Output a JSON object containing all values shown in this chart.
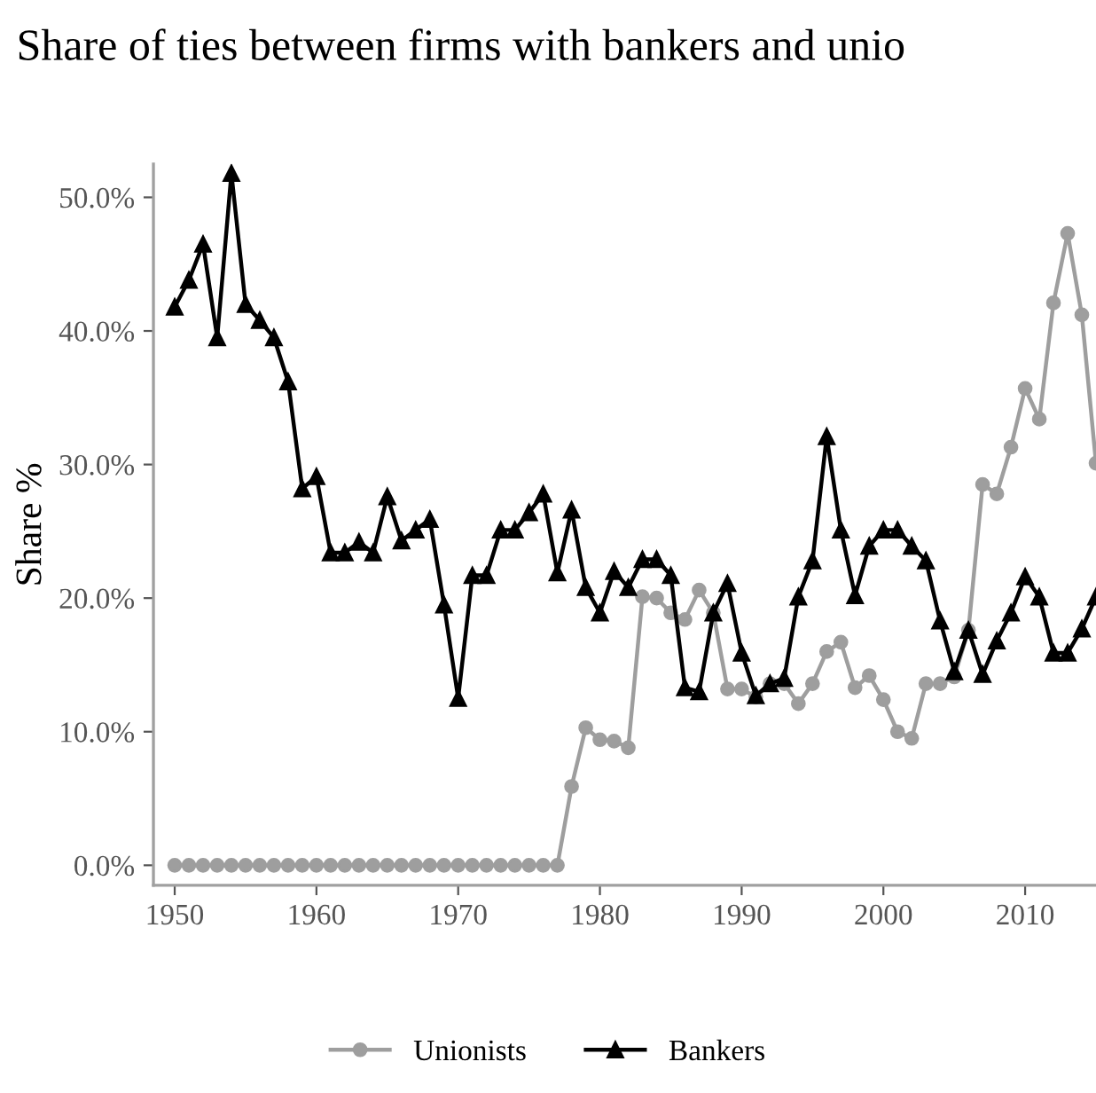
{
  "chart_data": {
    "type": "line",
    "title": "Share of ties between firms with bankers and unio",
    "ylabel": "Share %",
    "x": [
      1950,
      1951,
      1952,
      1953,
      1954,
      1955,
      1956,
      1957,
      1958,
      1959,
      1960,
      1961,
      1962,
      1963,
      1964,
      1965,
      1966,
      1967,
      1968,
      1969,
      1970,
      1971,
      1972,
      1973,
      1974,
      1975,
      1976,
      1977,
      1978,
      1979,
      1980,
      1981,
      1982,
      1983,
      1984,
      1985,
      1986,
      1987,
      1988,
      1989,
      1990,
      1991,
      1992,
      1993,
      1994,
      1995,
      1996,
      1997,
      1998,
      1999,
      2000,
      2001,
      2002,
      2003,
      2004,
      2005,
      2006,
      2007,
      2008,
      2009,
      2010,
      2011,
      2012,
      2013,
      2014,
      2015
    ],
    "series": [
      {
        "name": "Unionists",
        "color": "#9e9e9e",
        "marker": "circle",
        "values": [
          0,
          0,
          0,
          0,
          0,
          0,
          0,
          0,
          0,
          0,
          0,
          0,
          0,
          0,
          0,
          0,
          0,
          0,
          0,
          0,
          0,
          0,
          0,
          0,
          0,
          0,
          0,
          0,
          5.9,
          10.3,
          9.4,
          9.3,
          8.8,
          20.1,
          20.0,
          18.9,
          18.4,
          20.6,
          18.9,
          13.2,
          13.2,
          12.6,
          13.6,
          13.6,
          12.1,
          13.6,
          16.0,
          16.7,
          13.3,
          14.2,
          12.4,
          10.0,
          9.5,
          13.6,
          13.6,
          14.1,
          17.6,
          28.5,
          27.8,
          31.3,
          35.7,
          33.4,
          42.1,
          47.3,
          41.2,
          30.1
        ]
      },
      {
        "name": "Bankers",
        "color": "#000000",
        "marker": "triangle",
        "values": [
          41.8,
          43.8,
          46.5,
          39.5,
          51.8,
          42.0,
          40.8,
          39.5,
          36.2,
          28.2,
          29.1,
          23.4,
          23.4,
          24.2,
          23.4,
          27.6,
          24.3,
          25.1,
          25.9,
          19.5,
          12.5,
          21.7,
          21.7,
          25.1,
          25.1,
          26.4,
          27.8,
          21.9,
          26.6,
          20.8,
          18.9,
          22.0,
          20.8,
          22.9,
          22.9,
          21.7,
          13.3,
          13.0,
          18.9,
          21.1,
          15.9,
          12.7,
          13.6,
          14.0,
          20.1,
          22.8,
          32.1,
          25.1,
          20.2,
          23.9,
          25.1,
          25.1,
          23.9,
          22.8,
          18.3,
          14.5,
          17.6,
          14.3,
          16.8,
          18.9,
          21.6,
          20.1,
          15.9,
          15.9,
          17.7,
          20.1
        ]
      }
    ],
    "xlim": [
      1948.5,
      2015
    ],
    "xticks": [
      1950,
      1960,
      1970,
      1980,
      1990,
      2000,
      2010
    ],
    "ylim": [
      -1.5,
      52.5
    ],
    "yticks": [
      {
        "value": 0,
        "label": "0.0%"
      },
      {
        "value": 10,
        "label": "10.0%"
      },
      {
        "value": 20,
        "label": "20.0%"
      },
      {
        "value": 30,
        "label": "30.0%"
      },
      {
        "value": 40,
        "label": "40.0%"
      },
      {
        "value": 50,
        "label": "50.0%"
      }
    ],
    "legend": "bottom",
    "grid": false,
    "line_style": "solid"
  }
}
